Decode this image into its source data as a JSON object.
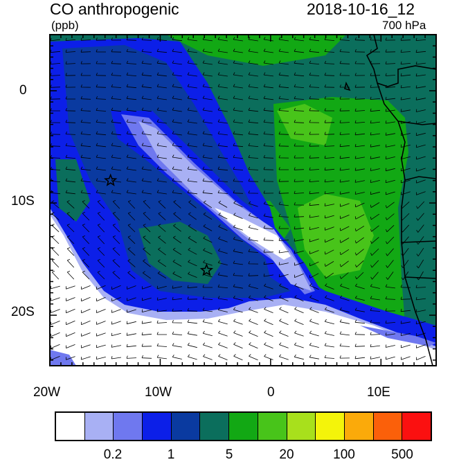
{
  "title": "CO anthropogenic",
  "units": "(ppb)",
  "datetime": "2018-10-16_12",
  "level": "700 hPa",
  "map": {
    "lon_range": [
      -20,
      15
    ],
    "lat_range": [
      -24.5,
      5
    ],
    "x_tick_labels": [
      "20W",
      "10W",
      "0",
      "10E"
    ],
    "y_tick_labels": [
      "0",
      "10S",
      "20S"
    ],
    "markers": [
      {
        "name": "star",
        "lon": -14.5,
        "lat": -8
      },
      {
        "name": "star",
        "lon": -5.8,
        "lat": -16
      }
    ]
  },
  "colorbar": {
    "colors": [
      "#ffffff",
      "#a8b0f4",
      "#6f78ef",
      "#0c1fe8",
      "#0a3aa0",
      "#0b6e5c",
      "#12a814",
      "#48c41a",
      "#a8e01c",
      "#f4f40a",
      "#fbaa0a",
      "#fb600a",
      "#fb1010"
    ],
    "labels": [
      "0.2",
      "1",
      "5",
      "20",
      "100",
      "500"
    ]
  }
}
